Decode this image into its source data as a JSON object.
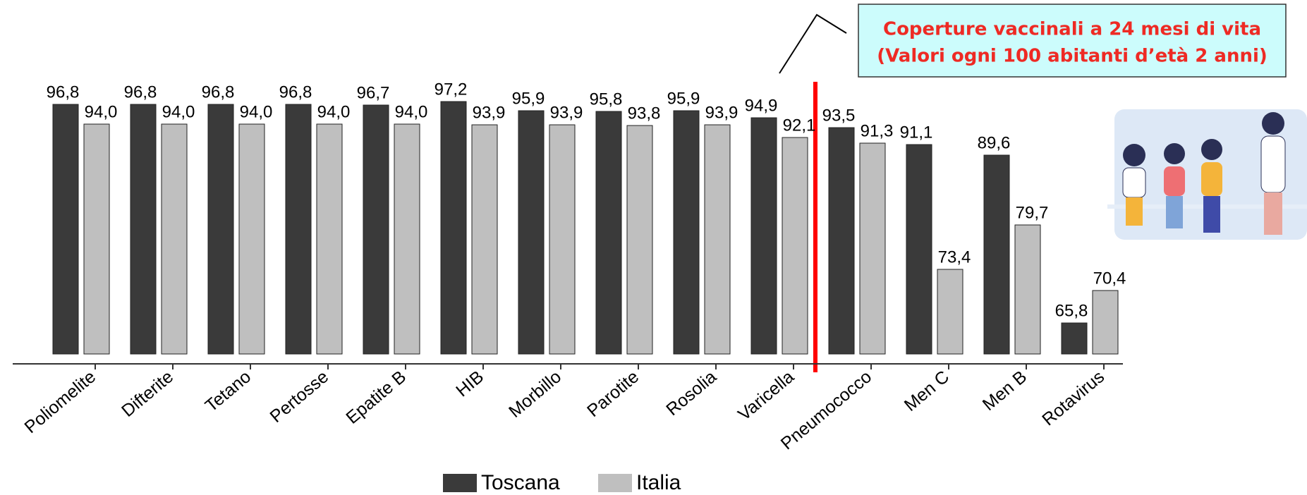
{
  "chart_data": {
    "type": "bar",
    "annotation": [
      "Coperture vaccinali a 24 mesi di vita",
      "(Valori ogni 100 abitanti d’età 2 anni)"
    ],
    "categories": [
      "Poliomelite",
      "Difterite",
      "Tetano",
      "Pertosse",
      "Epatite B",
      "HIB",
      "Morbillo",
      "Parotite",
      "Rosolia",
      "Varicella",
      "Pneumococco",
      "Men C",
      "Men B",
      "Rotavirus"
    ],
    "series": [
      {
        "name": "Toscana",
        "color": "#3a3a3a",
        "values": [
          96.8,
          96.8,
          96.8,
          96.8,
          96.7,
          97.2,
          95.9,
          95.8,
          95.9,
          94.9,
          93.5,
          91.1,
          89.6,
          65.8
        ],
        "value_labels": [
          "96,8",
          "96,8",
          "96,8",
          "96,8",
          "96,7",
          "97,2",
          "95,9",
          "95,8",
          "95,9",
          "94,9",
          "93,5",
          "91,1",
          "89,6",
          "65,8"
        ]
      },
      {
        "name": "Italia",
        "color": "#bfbfbf",
        "values": [
          94.0,
          94.0,
          94.0,
          94.0,
          94.0,
          93.9,
          93.9,
          93.8,
          93.9,
          92.1,
          91.3,
          73.4,
          79.7,
          70.4
        ],
        "value_labels": [
          "94,0",
          "94,0",
          "94,0",
          "94,0",
          "94,0",
          "93,9",
          "93,9",
          "93,8",
          "93,9",
          "92,1",
          "91,3",
          "73,4",
          "79,7",
          "70,4"
        ]
      }
    ],
    "ylim": [
      60,
      100
    ],
    "legend": "bottom"
  }
}
